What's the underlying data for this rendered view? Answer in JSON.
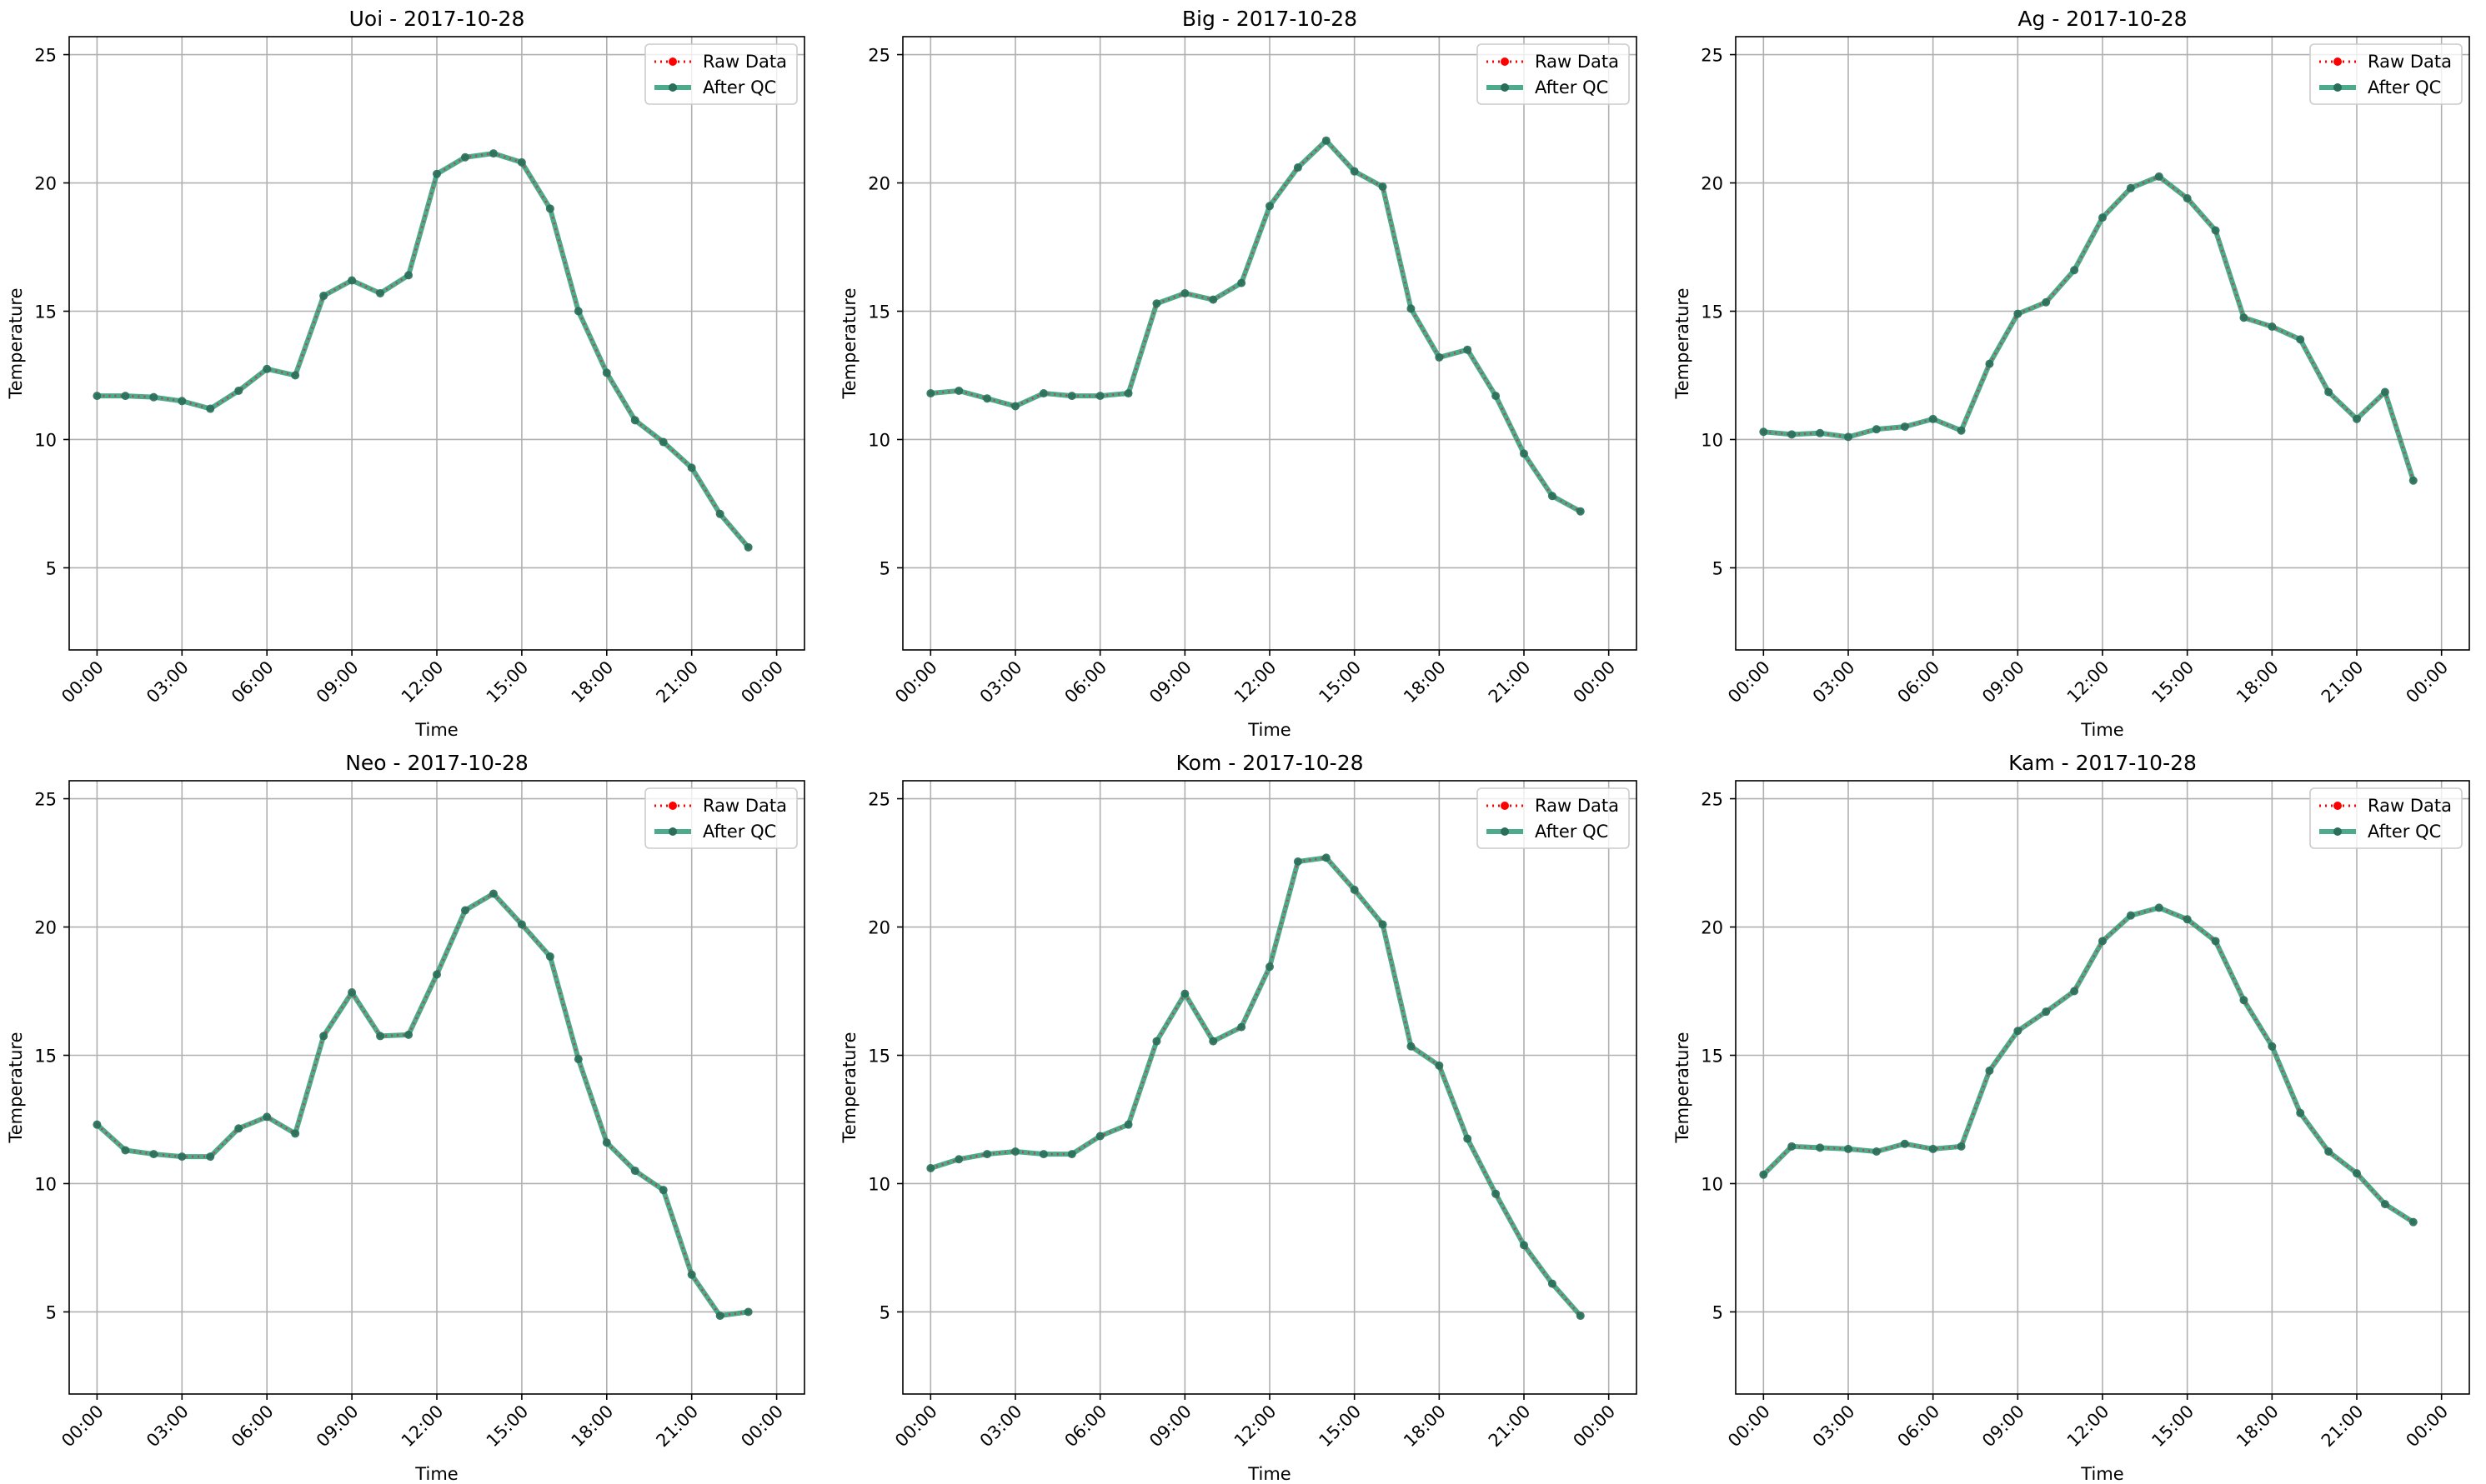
{
  "chart_data": [
    {
      "type": "line",
      "title": "Uoi - 2017-10-28",
      "xlabel": "Time",
      "ylabel": "Temperature",
      "xlim": [
        "2017-10-27 23:01",
        "2017-10-29 00:59"
      ],
      "ylim": [
        1.8,
        25.7
      ],
      "xticks": [
        "00:00",
        "03:00",
        "06:00",
        "09:00",
        "12:00",
        "15:00",
        "18:00",
        "21:00",
        "00:00"
      ],
      "yticks": [
        5,
        10,
        15,
        20,
        25
      ],
      "x": [
        "00:00",
        "01:00",
        "02:00",
        "03:00",
        "04:00",
        "05:00",
        "06:00",
        "07:00",
        "08:00",
        "09:00",
        "10:00",
        "11:00",
        "12:00",
        "13:00",
        "14:00",
        "15:00",
        "16:00",
        "17:00",
        "18:00",
        "19:00",
        "20:00",
        "21:00",
        "22:00",
        "23:00"
      ],
      "series": [
        {
          "name": "Raw Data",
          "color": "#ff0000",
          "values": [
            11.7,
            11.7,
            11.65,
            11.5,
            11.2,
            11.9,
            12.75,
            12.5,
            15.6,
            16.2,
            15.7,
            16.4,
            20.35,
            21.0,
            21.15,
            20.8,
            19.0,
            15.0,
            12.6,
            10.75,
            9.9,
            8.9,
            7.1,
            5.8
          ]
        },
        {
          "name": "After QC",
          "color": "#2e9b78",
          "values": [
            11.7,
            11.7,
            11.65,
            11.5,
            11.2,
            11.9,
            12.75,
            12.5,
            15.6,
            16.2,
            15.7,
            16.4,
            20.35,
            21.0,
            21.15,
            20.8,
            19.0,
            15.0,
            12.6,
            10.75,
            9.9,
            8.9,
            7.1,
            5.8
          ]
        }
      ],
      "grid": true,
      "legend_position": "top-right"
    },
    {
      "type": "line",
      "title": "Big - 2017-10-28",
      "xlabel": "Time",
      "ylabel": "Temperature",
      "xlim": [
        "2017-10-27 23:01",
        "2017-10-29 00:59"
      ],
      "ylim": [
        1.8,
        25.7
      ],
      "xticks": [
        "00:00",
        "03:00",
        "06:00",
        "09:00",
        "12:00",
        "15:00",
        "18:00",
        "21:00",
        "00:00"
      ],
      "yticks": [
        5,
        10,
        15,
        20,
        25
      ],
      "x": [
        "00:00",
        "01:00",
        "02:00",
        "03:00",
        "04:00",
        "05:00",
        "06:00",
        "07:00",
        "08:00",
        "09:00",
        "10:00",
        "11:00",
        "12:00",
        "13:00",
        "14:00",
        "15:00",
        "16:00",
        "17:00",
        "18:00",
        "19:00",
        "20:00",
        "21:00",
        "22:00",
        "23:00"
      ],
      "series": [
        {
          "name": "Raw Data",
          "color": "#ff0000",
          "values": [
            11.8,
            11.9,
            11.6,
            11.3,
            11.8,
            11.7,
            11.7,
            11.8,
            15.3,
            15.7,
            15.45,
            16.1,
            19.1,
            20.6,
            21.65,
            20.45,
            19.85,
            15.1,
            13.2,
            13.5,
            11.7,
            9.45,
            7.8,
            7.2
          ]
        },
        {
          "name": "After QC",
          "color": "#2e9b78",
          "values": [
            11.8,
            11.9,
            11.6,
            11.3,
            11.8,
            11.7,
            11.7,
            11.8,
            15.3,
            15.7,
            15.45,
            16.1,
            19.1,
            20.6,
            21.65,
            20.45,
            19.85,
            15.1,
            13.2,
            13.5,
            11.7,
            9.45,
            7.8,
            7.2
          ]
        }
      ],
      "grid": true,
      "legend_position": "top-right"
    },
    {
      "type": "line",
      "title": "Ag - 2017-10-28",
      "xlabel": "Time",
      "ylabel": "Temperature",
      "xlim": [
        "2017-10-27 23:01",
        "2017-10-29 00:59"
      ],
      "ylim": [
        1.8,
        25.7
      ],
      "xticks": [
        "00:00",
        "03:00",
        "06:00",
        "09:00",
        "12:00",
        "15:00",
        "18:00",
        "21:00",
        "00:00"
      ],
      "yticks": [
        5,
        10,
        15,
        20,
        25
      ],
      "x": [
        "00:00",
        "01:00",
        "02:00",
        "03:00",
        "04:00",
        "05:00",
        "06:00",
        "07:00",
        "08:00",
        "09:00",
        "10:00",
        "11:00",
        "12:00",
        "13:00",
        "14:00",
        "15:00",
        "16:00",
        "17:00",
        "18:00",
        "19:00",
        "20:00",
        "21:00",
        "22:00",
        "23:00"
      ],
      "series": [
        {
          "name": "Raw Data",
          "color": "#ff0000",
          "values": [
            10.3,
            10.2,
            10.25,
            10.1,
            10.4,
            10.5,
            10.8,
            10.35,
            12.95,
            14.9,
            15.35,
            16.6,
            18.65,
            19.8,
            20.25,
            19.4,
            18.15,
            14.75,
            14.4,
            13.9,
            11.85,
            10.8,
            11.85,
            8.4
          ]
        },
        {
          "name": "After QC",
          "color": "#2e9b78",
          "values": [
            10.3,
            10.2,
            10.25,
            10.1,
            10.4,
            10.5,
            10.8,
            10.35,
            12.95,
            14.9,
            15.35,
            16.6,
            18.65,
            19.8,
            20.25,
            19.4,
            18.15,
            14.75,
            14.4,
            13.9,
            11.85,
            10.8,
            11.85,
            8.4
          ]
        }
      ],
      "grid": true,
      "legend_position": "top-right"
    },
    {
      "type": "line",
      "title": "Neo - 2017-10-28",
      "xlabel": "Time",
      "ylabel": "Temperature",
      "xlim": [
        "2017-10-27 23:01",
        "2017-10-29 00:59"
      ],
      "ylim": [
        1.8,
        25.7
      ],
      "xticks": [
        "00:00",
        "03:00",
        "06:00",
        "09:00",
        "12:00",
        "15:00",
        "18:00",
        "21:00",
        "00:00"
      ],
      "yticks": [
        5,
        10,
        15,
        20,
        25
      ],
      "x": [
        "00:00",
        "01:00",
        "02:00",
        "03:00",
        "04:00",
        "05:00",
        "06:00",
        "07:00",
        "08:00",
        "09:00",
        "10:00",
        "11:00",
        "12:00",
        "13:00",
        "14:00",
        "15:00",
        "16:00",
        "17:00",
        "18:00",
        "19:00",
        "20:00",
        "21:00",
        "22:00",
        "23:00"
      ],
      "series": [
        {
          "name": "Raw Data",
          "color": "#ff0000",
          "values": [
            12.3,
            11.3,
            11.15,
            11.05,
            11.05,
            12.15,
            12.6,
            11.95,
            15.75,
            17.45,
            15.75,
            15.8,
            18.15,
            20.65,
            21.3,
            20.1,
            18.85,
            14.85,
            11.6,
            10.5,
            9.75,
            6.45,
            4.85,
            5.0
          ]
        },
        {
          "name": "After QC",
          "color": "#2e9b78",
          "values": [
            12.3,
            11.3,
            11.15,
            11.05,
            11.05,
            12.15,
            12.6,
            11.95,
            15.75,
            17.45,
            15.75,
            15.8,
            18.15,
            20.65,
            21.3,
            20.1,
            18.85,
            14.85,
            11.6,
            10.5,
            9.75,
            6.45,
            4.85,
            5.0
          ]
        }
      ],
      "grid": true,
      "legend_position": "top-right"
    },
    {
      "type": "line",
      "title": "Kom - 2017-10-28",
      "xlabel": "Time",
      "ylabel": "Temperature",
      "xlim": [
        "2017-10-27 23:01",
        "2017-10-29 00:59"
      ],
      "ylim": [
        1.8,
        25.7
      ],
      "xticks": [
        "00:00",
        "03:00",
        "06:00",
        "09:00",
        "12:00",
        "15:00",
        "18:00",
        "21:00",
        "00:00"
      ],
      "yticks": [
        5,
        10,
        15,
        20,
        25
      ],
      "x": [
        "00:00",
        "01:00",
        "02:00",
        "03:00",
        "04:00",
        "05:00",
        "06:00",
        "07:00",
        "08:00",
        "09:00",
        "10:00",
        "11:00",
        "12:00",
        "13:00",
        "14:00",
        "15:00",
        "16:00",
        "17:00",
        "18:00",
        "19:00",
        "20:00",
        "21:00",
        "22:00",
        "23:00"
      ],
      "series": [
        {
          "name": "Raw Data",
          "color": "#ff0000",
          "values": [
            10.6,
            10.95,
            11.15,
            11.25,
            11.15,
            11.15,
            11.85,
            12.3,
            15.55,
            17.4,
            15.55,
            16.1,
            18.45,
            22.55,
            22.7,
            21.45,
            20.1,
            15.35,
            14.6,
            11.75,
            9.6,
            7.6,
            6.1,
            4.85
          ]
        },
        {
          "name": "After QC",
          "color": "#2e9b78",
          "values": [
            10.6,
            10.95,
            11.15,
            11.25,
            11.15,
            11.15,
            11.85,
            12.3,
            15.55,
            17.4,
            15.55,
            16.1,
            18.45,
            22.55,
            22.7,
            21.45,
            20.1,
            15.35,
            14.6,
            11.75,
            9.6,
            7.6,
            6.1,
            4.85
          ]
        }
      ],
      "grid": true,
      "legend_position": "top-right"
    },
    {
      "type": "line",
      "title": "Kam - 2017-10-28",
      "xlabel": "Time",
      "ylabel": "Temperature",
      "xlim": [
        "2017-10-27 23:01",
        "2017-10-29 00:59"
      ],
      "ylim": [
        1.8,
        25.7
      ],
      "xticks": [
        "00:00",
        "03:00",
        "06:00",
        "09:00",
        "12:00",
        "15:00",
        "18:00",
        "21:00",
        "00:00"
      ],
      "yticks": [
        5,
        10,
        15,
        20,
        25
      ],
      "x": [
        "00:00",
        "01:00",
        "02:00",
        "03:00",
        "04:00",
        "05:00",
        "06:00",
        "07:00",
        "08:00",
        "09:00",
        "10:00",
        "11:00",
        "12:00",
        "13:00",
        "14:00",
        "15:00",
        "16:00",
        "17:00",
        "18:00",
        "19:00",
        "20:00",
        "21:00",
        "22:00",
        "23:00"
      ],
      "series": [
        {
          "name": "Raw Data",
          "color": "#ff0000",
          "values": [
            10.35,
            11.45,
            11.4,
            11.35,
            11.25,
            11.55,
            11.35,
            11.45,
            14.4,
            15.95,
            16.7,
            17.5,
            19.45,
            20.45,
            20.75,
            20.3,
            19.45,
            17.15,
            15.35,
            12.75,
            11.25,
            10.4,
            9.2,
            8.5
          ]
        },
        {
          "name": "After QC",
          "color": "#2e9b78",
          "values": [
            10.35,
            11.45,
            11.4,
            11.35,
            11.25,
            11.55,
            11.35,
            11.45,
            14.4,
            15.95,
            16.7,
            17.5,
            19.45,
            20.45,
            20.75,
            20.3,
            19.45,
            17.15,
            15.35,
            12.75,
            11.25,
            10.4,
            9.2,
            8.5
          ]
        }
      ],
      "grid": true,
      "legend_position": "top-right"
    }
  ]
}
